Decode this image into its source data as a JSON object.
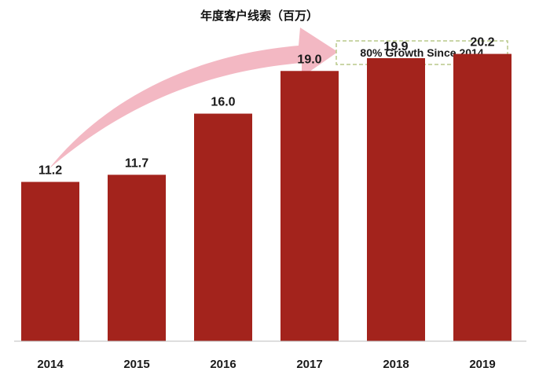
{
  "chart_data": {
    "type": "bar",
    "title": "年度客户线索（百万）",
    "categories": [
      "2014",
      "2015",
      "2016",
      "2017",
      "2018",
      "2019"
    ],
    "values": [
      11.2,
      11.7,
      16.0,
      19.0,
      19.9,
      20.2
    ],
    "value_labels": [
      "11.2",
      "11.7",
      "16.0",
      "19.0",
      "19.9",
      "20.2"
    ],
    "xlabel": "",
    "ylabel": "",
    "ylim": [
      0,
      22
    ],
    "grid": false,
    "annotation": "80% Growth Since 2014",
    "colors": {
      "bar": "#a3231c",
      "arrow": "#f3b8c3",
      "annotation_border": "#b9c98a",
      "axis": "#bdbdbd"
    }
  }
}
